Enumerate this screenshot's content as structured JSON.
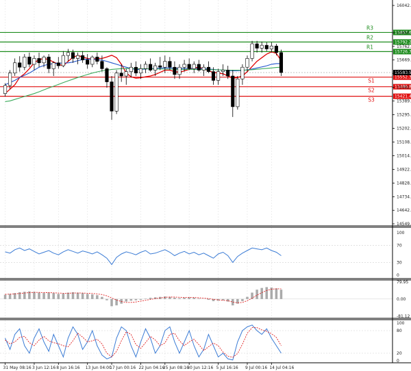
{
  "chart_data": {
    "type": "candlestick",
    "main": {
      "ylim": [
        14549.5,
        16042.0
      ],
      "ytick_labels": [
        "16042.0",
        "15855.4",
        "15762.0",
        "15669.5",
        "15577.3",
        "15482.0",
        "15389.5",
        "15295.1",
        "15202.0",
        "15108.7",
        "15014.5",
        "14922.0",
        "14828.0",
        "14734.5",
        "14642.0",
        "14549.5"
      ],
      "ytick_values": [
        16042.0,
        15855.4,
        15762.0,
        15669.5,
        15577.3,
        15482.0,
        15389.5,
        15295.1,
        15202.0,
        15108.7,
        15014.5,
        14922.0,
        14828.0,
        14734.5,
        14642.0,
        14549.5
      ],
      "levels": [
        {
          "name": "R3",
          "value": 15857.6,
          "label": "15857.6",
          "color": "#1e8c1e"
        },
        {
          "name": "R2",
          "value": 15792.2,
          "label": "15792.2",
          "color": "#1e8c1e"
        },
        {
          "name": "R1",
          "value": 15726.7,
          "label": "15726.7",
          "color": "#1e8c1e"
        },
        {
          "name": "S1",
          "value": 15552.3,
          "label": "15552.3",
          "color": "#e01010"
        },
        {
          "name": "S2",
          "value": 15486.8,
          "label": "15486.8",
          "color": "#e01010"
        },
        {
          "name": "S3",
          "value": 15421.4,
          "label": "15421.4",
          "color": "#e01010"
        }
      ],
      "last_price": 15583.5,
      "last_price_label": "15583.5",
      "series": [
        {
          "name": "",
          "color": "#e00000",
          "values": [
            15440,
            15470,
            15500,
            15550,
            15575,
            15610,
            15650,
            15672,
            15680,
            15672,
            15655,
            15640,
            15630,
            15660,
            15688,
            15700,
            15690,
            15680,
            15675,
            15680,
            15680,
            15690,
            15702,
            15685,
            15640,
            15580,
            15555,
            15545,
            15548,
            15555,
            15560,
            15570,
            15585,
            15600,
            15600,
            15590,
            15585,
            15595,
            15605,
            15615,
            15620,
            15610,
            15595,
            15585,
            15580,
            15575,
            15560,
            15545,
            15550,
            15560,
            15590,
            15625,
            15660,
            15685,
            15710,
            15725,
            15715,
            15665
          ]
        },
        {
          "name": "",
          "color": "#2255cc",
          "values": [
            15500,
            15515,
            15530,
            15550,
            15565,
            15580,
            15600,
            15620,
            15632,
            15640,
            15645,
            15648,
            15648,
            15650,
            15655,
            15665,
            15672,
            15675,
            15675,
            15672,
            15668,
            15660,
            15650,
            15640,
            15630,
            15620,
            15610,
            15605,
            15605,
            15608,
            15610,
            15612,
            15614,
            15615,
            15615,
            15614,
            15612,
            15611,
            15612,
            15612,
            15611,
            15610,
            15608,
            15605,
            15602,
            15600,
            15598,
            15595,
            15596,
            15598,
            15602,
            15608,
            15615,
            15622,
            15630,
            15640,
            15645,
            15645
          ]
        },
        {
          "name": "",
          "color": "#3aaa5a",
          "values": [
            15385,
            15390,
            15400,
            15410,
            15420,
            15430,
            15440,
            15452,
            15465,
            15478,
            15490,
            15502,
            15515,
            15527,
            15538,
            15550,
            15560,
            15570,
            15580,
            15588,
            15595,
            15600,
            15605,
            15608,
            15610,
            15611,
            15611,
            15610,
            15610,
            15609,
            15609,
            15608,
            15608,
            15607,
            15607,
            15606,
            15606,
            15605,
            15605,
            15605,
            15604,
            15604,
            15603,
            15603,
            15602,
            15601,
            15600,
            15600,
            15600,
            15600,
            15601,
            15603,
            15606,
            15609,
            15612,
            15615,
            15618,
            15620
          ]
        }
      ],
      "candles": [
        {
          "o": 15440,
          "h": 15510,
          "l": 15420,
          "c": 15495
        },
        {
          "o": 15495,
          "h": 15600,
          "l": 15470,
          "c": 15580
        },
        {
          "o": 15580,
          "h": 15680,
          "l": 15560,
          "c": 15650
        },
        {
          "o": 15650,
          "h": 15695,
          "l": 15590,
          "c": 15620
        },
        {
          "o": 15620,
          "h": 15710,
          "l": 15600,
          "c": 15690
        },
        {
          "o": 15690,
          "h": 15720,
          "l": 15620,
          "c": 15640
        },
        {
          "o": 15640,
          "h": 15700,
          "l": 15600,
          "c": 15680
        },
        {
          "o": 15680,
          "h": 15720,
          "l": 15620,
          "c": 15650
        },
        {
          "o": 15650,
          "h": 15700,
          "l": 15620,
          "c": 15690
        },
        {
          "o": 15690,
          "h": 15710,
          "l": 15580,
          "c": 15610
        },
        {
          "o": 15610,
          "h": 15660,
          "l": 15560,
          "c": 15650
        },
        {
          "o": 15650,
          "h": 15690,
          "l": 15610,
          "c": 15630
        },
        {
          "o": 15630,
          "h": 15730,
          "l": 15620,
          "c": 15700
        },
        {
          "o": 15700,
          "h": 15745,
          "l": 15660,
          "c": 15720
        },
        {
          "o": 15720,
          "h": 15740,
          "l": 15650,
          "c": 15680
        },
        {
          "o": 15680,
          "h": 15720,
          "l": 15640,
          "c": 15700
        },
        {
          "o": 15700,
          "h": 15730,
          "l": 15650,
          "c": 15670
        },
        {
          "o": 15670,
          "h": 15710,
          "l": 15610,
          "c": 15640
        },
        {
          "o": 15640,
          "h": 15700,
          "l": 15620,
          "c": 15690
        },
        {
          "o": 15690,
          "h": 15720,
          "l": 15640,
          "c": 15660
        },
        {
          "o": 15660,
          "h": 15700,
          "l": 15590,
          "c": 15610
        },
        {
          "o": 15610,
          "h": 15620,
          "l": 15480,
          "c": 15520
        },
        {
          "o": 15520,
          "h": 15560,
          "l": 15260,
          "c": 15320
        },
        {
          "o": 15320,
          "h": 15600,
          "l": 15300,
          "c": 15580
        },
        {
          "o": 15580,
          "h": 15640,
          "l": 15520,
          "c": 15560
        },
        {
          "o": 15560,
          "h": 15610,
          "l": 15500,
          "c": 15590
        },
        {
          "o": 15590,
          "h": 15650,
          "l": 15550,
          "c": 15620
        },
        {
          "o": 15620,
          "h": 15660,
          "l": 15560,
          "c": 15580
        },
        {
          "o": 15580,
          "h": 15640,
          "l": 15540,
          "c": 15610
        },
        {
          "o": 15610,
          "h": 15660,
          "l": 15580,
          "c": 15640
        },
        {
          "o": 15640,
          "h": 15680,
          "l": 15590,
          "c": 15600
        },
        {
          "o": 15600,
          "h": 15650,
          "l": 15560,
          "c": 15630
        },
        {
          "o": 15630,
          "h": 15690,
          "l": 15600,
          "c": 15620
        },
        {
          "o": 15620,
          "h": 15700,
          "l": 15580,
          "c": 15660
        },
        {
          "o": 15660,
          "h": 15690,
          "l": 15600,
          "c": 15620
        },
        {
          "o": 15620,
          "h": 15660,
          "l": 15540,
          "c": 15570
        },
        {
          "o": 15570,
          "h": 15640,
          "l": 15540,
          "c": 15620
        },
        {
          "o": 15620,
          "h": 15670,
          "l": 15590,
          "c": 15640
        },
        {
          "o": 15640,
          "h": 15680,
          "l": 15600,
          "c": 15610
        },
        {
          "o": 15610,
          "h": 15660,
          "l": 15580,
          "c": 15640
        },
        {
          "o": 15640,
          "h": 15670,
          "l": 15590,
          "c": 15600
        },
        {
          "o": 15600,
          "h": 15640,
          "l": 15560,
          "c": 15620
        },
        {
          "o": 15620,
          "h": 15660,
          "l": 15580,
          "c": 15590
        },
        {
          "o": 15590,
          "h": 15620,
          "l": 15500,
          "c": 15530
        },
        {
          "o": 15530,
          "h": 15610,
          "l": 15500,
          "c": 15590
        },
        {
          "o": 15590,
          "h": 15640,
          "l": 15560,
          "c": 15600
        },
        {
          "o": 15600,
          "h": 15630,
          "l": 15540,
          "c": 15560
        },
        {
          "o": 15560,
          "h": 15600,
          "l": 15280,
          "c": 15350
        },
        {
          "o": 15350,
          "h": 15560,
          "l": 15330,
          "c": 15540
        },
        {
          "o": 15540,
          "h": 15640,
          "l": 15500,
          "c": 15620
        },
        {
          "o": 15620,
          "h": 15700,
          "l": 15590,
          "c": 15680
        },
        {
          "o": 15680,
          "h": 15800,
          "l": 15660,
          "c": 15780
        },
        {
          "o": 15780,
          "h": 15800,
          "l": 15720,
          "c": 15750
        },
        {
          "o": 15750,
          "h": 15795,
          "l": 15720,
          "c": 15770
        },
        {
          "o": 15770,
          "h": 15790,
          "l": 15730,
          "c": 15745
        },
        {
          "o": 15745,
          "h": 15790,
          "l": 15720,
          "c": 15765
        },
        {
          "o": 15765,
          "h": 15780,
          "l": 15700,
          "c": 15720
        },
        {
          "o": 15720,
          "h": 15740,
          "l": 15560,
          "c": 15583.5
        }
      ]
    },
    "rsi": {
      "ylim": [
        0,
        100
      ],
      "ytick_labels": [
        "100",
        "70",
        "30",
        "0"
      ],
      "ytick_values": [
        100,
        70,
        30,
        0
      ],
      "color": "#3a7bd5",
      "values": [
        55,
        52,
        60,
        64,
        58,
        62,
        56,
        50,
        54,
        58,
        52,
        48,
        55,
        60,
        56,
        52,
        57,
        54,
        50,
        55,
        48,
        40,
        25,
        42,
        50,
        55,
        52,
        48,
        54,
        58,
        50,
        52,
        56,
        60,
        54,
        46,
        52,
        56,
        50,
        54,
        48,
        52,
        46,
        40,
        50,
        54,
        46,
        30,
        44,
        52,
        58,
        64,
        62,
        60,
        64,
        58,
        54,
        46
      ]
    },
    "macd": {
      "ylim": [
        -81.12,
        79.95
      ],
      "ytick_labels": [
        "79.95",
        "0.00",
        "-81.12"
      ],
      "ytick_values": [
        79.95,
        0,
        -81.12
      ],
      "hist_color": "#aaaaaa",
      "signal_color": "#e02020",
      "hist": [
        20,
        24,
        28,
        32,
        34,
        36,
        34,
        30,
        28,
        30,
        28,
        24,
        26,
        30,
        32,
        30,
        28,
        24,
        22,
        18,
        10,
        -6,
        -34,
        -30,
        -22,
        -12,
        -8,
        -6,
        -4,
        2,
        6,
        8,
        10,
        12,
        10,
        6,
        4,
        6,
        8,
        6,
        2,
        0,
        -4,
        -10,
        -8,
        -6,
        -12,
        -30,
        -22,
        -10,
        10,
        30,
        44,
        52,
        56,
        54,
        50,
        44
      ],
      "signal": [
        22,
        23,
        24,
        26,
        28,
        30,
        31,
        31,
        30,
        30,
        29,
        28,
        27,
        27,
        28,
        28,
        28,
        27,
        26,
        24,
        21,
        15,
        5,
        -5,
        -12,
        -16,
        -16,
        -14,
        -10,
        -6,
        -2,
        2,
        5,
        8,
        9,
        9,
        8,
        7,
        7,
        7,
        6,
        4,
        2,
        -2,
        -4,
        -6,
        -8,
        -14,
        -18,
        -16,
        -8,
        4,
        18,
        30,
        40,
        46,
        48,
        48
      ]
    },
    "stoch": {
      "ylim": [
        0,
        100
      ],
      "ytick_labels": [
        "100",
        "80",
        "20",
        "0"
      ],
      "ytick_values": [
        100,
        80,
        20,
        0
      ],
      "k_color": "#3a7bd5",
      "d_color": "#e02020",
      "k": [
        60,
        30,
        70,
        85,
        40,
        20,
        60,
        85,
        50,
        25,
        70,
        40,
        10,
        60,
        90,
        70,
        30,
        50,
        80,
        40,
        15,
        5,
        10,
        60,
        90,
        80,
        40,
        10,
        50,
        85,
        60,
        20,
        40,
        80,
        90,
        50,
        20,
        50,
        80,
        40,
        10,
        30,
        70,
        40,
        10,
        20,
        5,
        2,
        50,
        80,
        90,
        95,
        80,
        70,
        85,
        60,
        40,
        20
      ],
      "d": [
        55,
        45,
        50,
        62,
        65,
        48,
        40,
        55,
        65,
        53,
        48,
        45,
        40,
        37,
        53,
        73,
        63,
        50,
        53,
        57,
        45,
        20,
        10,
        25,
        53,
        77,
        70,
        43,
        33,
        48,
        65,
        55,
        40,
        47,
        70,
        73,
        53,
        40,
        50,
        57,
        43,
        27,
        37,
        47,
        40,
        23,
        12,
        9,
        19,
        44,
        73,
        88,
        88,
        82,
        78,
        72,
        62,
        40
      ]
    },
    "x_tick_labels": [
      "31 May 08:16",
      "3 Jun 12:16",
      "8 Jun 16:16",
      "13 Jun 04:00",
      "17 Jun 00:16",
      "22 Jun 04:16",
      "25 Jun 08:16",
      "30 Jun 12:16",
      "5 Jul 16:16",
      "9 Jul 00:16",
      "14 Jul 04:16"
    ],
    "x_tick_positions": [
      0,
      6,
      11,
      17,
      22,
      28,
      33,
      38,
      44,
      50,
      55
    ]
  }
}
